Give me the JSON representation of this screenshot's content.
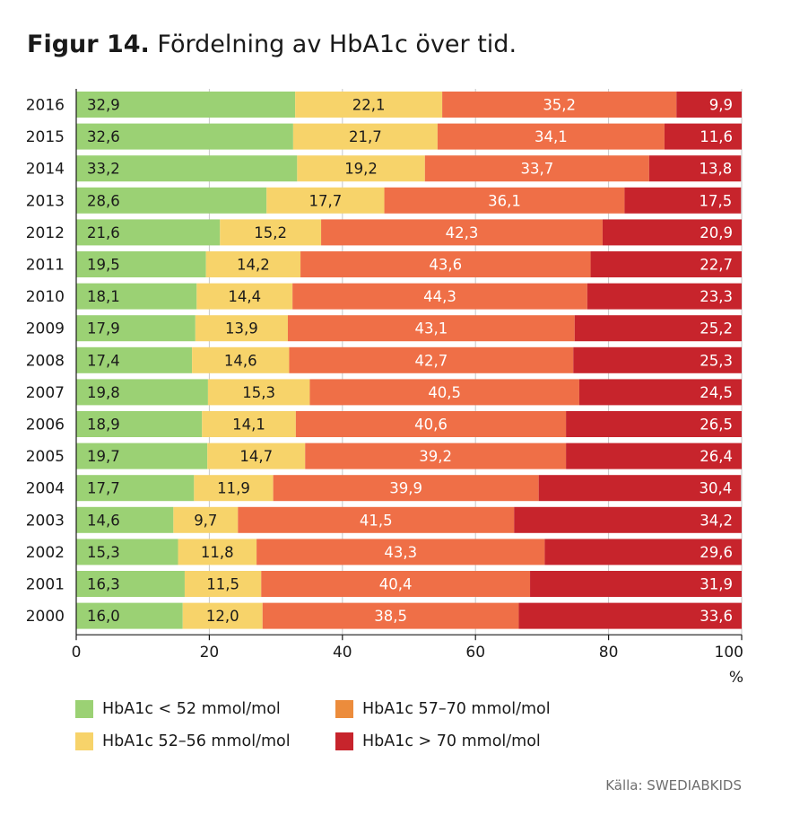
{
  "title": {
    "label": "Figur 14.",
    "text": "Fördelning av HbA1c över tid."
  },
  "source": "Källa: SWEDIABKIDS",
  "colors": {
    "green": "#9bd174",
    "yellow": "#f7d36a",
    "orange": "#ef6f47",
    "red": "#c7242c",
    "legend_orange": "#ec8c3c"
  },
  "legend": [
    {
      "label": "HbA1c < 52 mmol/mol",
      "color": "#9bd174"
    },
    {
      "label": "HbA1c 57–70 mmol/mol",
      "color": "#ec8c3c"
    },
    {
      "label": "HbA1c 52–56 mmol/mol",
      "color": "#f7d36a"
    },
    {
      "label": "HbA1c > 70 mmol/mol",
      "color": "#c7242c"
    }
  ],
  "chart_data": {
    "type": "bar",
    "orientation": "horizontal",
    "stacked": true,
    "title": "Fördelning av HbA1c över tid.",
    "xlabel": "%",
    "xlim": [
      0,
      100
    ],
    "xticks": [
      0,
      20,
      40,
      60,
      80,
      100
    ],
    "grid": true,
    "legend_position": "bottom",
    "categories": [
      "2016",
      "2015",
      "2014",
      "2013",
      "2012",
      "2011",
      "2010",
      "2009",
      "2008",
      "2007",
      "2006",
      "2005",
      "2004",
      "2003",
      "2002",
      "2001",
      "2000"
    ],
    "series": [
      {
        "name": "HbA1c < 52 mmol/mol",
        "color": "#9bd174",
        "values": [
          32.9,
          32.6,
          33.2,
          28.6,
          21.6,
          19.5,
          18.1,
          17.9,
          17.4,
          19.8,
          18.9,
          19.7,
          17.7,
          14.6,
          15.3,
          16.3,
          16.0
        ],
        "labels": [
          "32,9",
          "32,6",
          "33,2",
          "28,6",
          "21,6",
          "19,5",
          "18,1",
          "17,9",
          "17,4",
          "19,8",
          "18,9",
          "19,7",
          "17,7",
          "14,6",
          "15,3",
          "16,3",
          "16,0"
        ]
      },
      {
        "name": "HbA1c 52–56 mmol/mol",
        "color": "#f7d36a",
        "values": [
          22.1,
          21.7,
          19.2,
          17.7,
          15.2,
          14.2,
          14.4,
          13.9,
          14.6,
          15.3,
          14.1,
          14.7,
          11.9,
          9.7,
          11.8,
          11.5,
          12.0
        ],
        "labels": [
          "22,1",
          "21,7",
          "19,2",
          "17,7",
          "15,2",
          "14,2",
          "14,4",
          "13,9",
          "14,6",
          "15,3",
          "14,1",
          "14,7",
          "11,9",
          "9,7",
          "11,8",
          "11,5",
          "12,0"
        ]
      },
      {
        "name": "HbA1c 57–70 mmol/mol",
        "color": "#ef6f47",
        "values": [
          35.2,
          34.1,
          33.7,
          36.1,
          42.3,
          43.6,
          44.3,
          43.1,
          42.7,
          40.5,
          40.6,
          39.2,
          39.9,
          41.5,
          43.3,
          40.4,
          38.5
        ],
        "labels": [
          "35,2",
          "34,1",
          "33,7",
          "36,1",
          "42,3",
          "43,6",
          "44,3",
          "43,1",
          "42,7",
          "40,5",
          "40,6",
          "39,2",
          "39,9",
          "41,5",
          "43,3",
          "40,4",
          "38,5"
        ]
      },
      {
        "name": "HbA1c > 70 mmol/mol",
        "color": "#c7242c",
        "values": [
          9.9,
          11.6,
          13.8,
          17.5,
          20.9,
          22.7,
          23.3,
          25.2,
          25.3,
          24.5,
          26.5,
          26.4,
          30.4,
          34.2,
          29.6,
          31.9,
          33.6
        ],
        "labels": [
          "9,9",
          "11,6",
          "13,8",
          "17,5",
          "20,9",
          "22,7",
          "23,3",
          "25,2",
          "25,3",
          "24,5",
          "26,5",
          "26,4",
          "30,4",
          "34,2",
          "29,6",
          "31,9",
          "33,6"
        ]
      }
    ]
  }
}
